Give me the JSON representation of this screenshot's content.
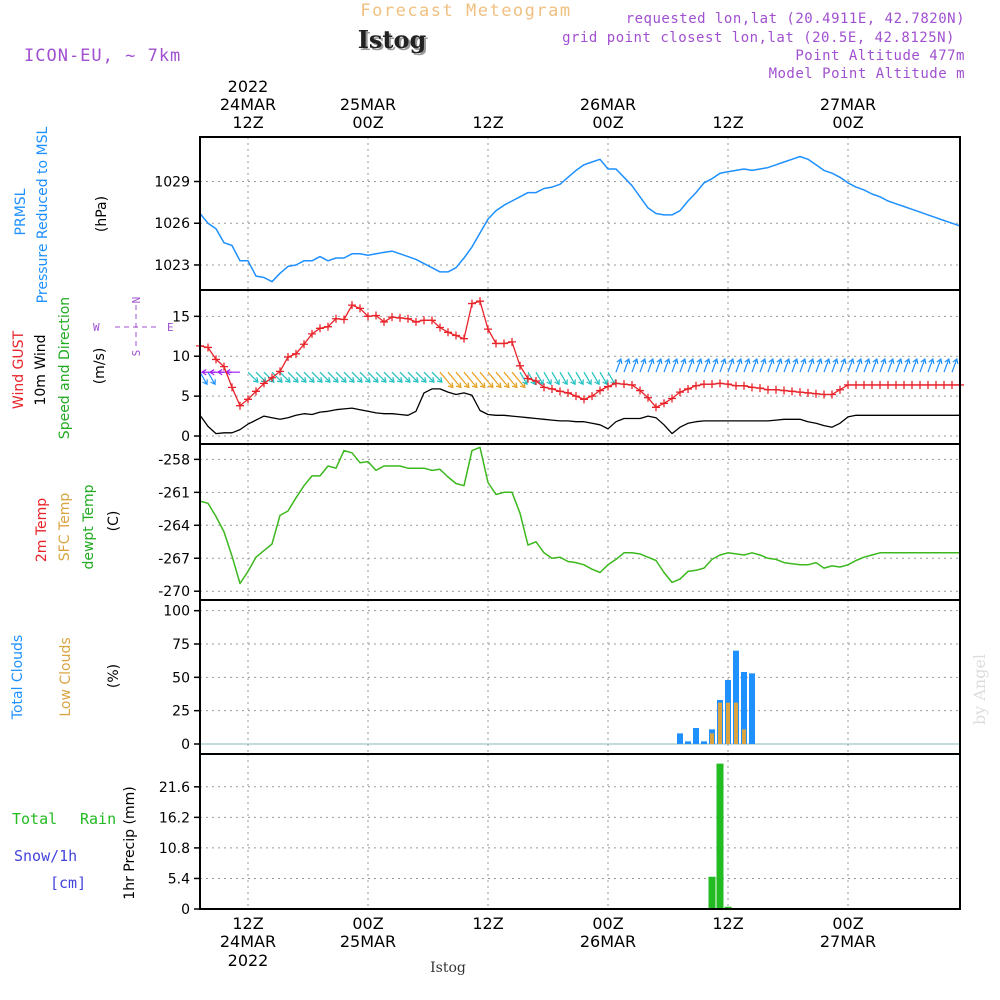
{
  "header": {
    "top_title": "Forecast Meteogram",
    "location": "Istog",
    "model": "ICON-EU, ~ 7km",
    "requested": "requested lon,lat (20.4911E, 42.7820N)",
    "grid_point": "grid point closest lon,lat (20.5E, 42.8125N)",
    "point_alt": "Point Altitude 477m",
    "model_alt": "Model Point Altitude m",
    "watermark": "by Angel",
    "bottom_location": "Istog"
  },
  "colors": {
    "pressure": "#1e90ff",
    "gust": "#e8232a",
    "wind": "#000000",
    "temp": "#3cb81e",
    "total_clouds": "#1e90ff",
    "low_clouds": "#d9a441",
    "rain": "#22bb22",
    "purple": "#a050d0",
    "orange_text": "#f0c080",
    "snow_text": "#4444dd"
  },
  "time_axis": {
    "start_hour": 0,
    "end_hour": 95,
    "top_ticks": [
      {
        "hour": 6,
        "l1": "2022",
        "l2": "24MAR",
        "l3": "12Z"
      },
      {
        "hour": 21,
        "l1": "",
        "l2": "25MAR",
        "l3": "00Z"
      },
      {
        "hour": 36,
        "l1": "",
        "l2": "",
        "l3": "12Z"
      },
      {
        "hour": 51,
        "l1": "",
        "l2": "26MAR",
        "l3": "00Z"
      },
      {
        "hour": 66,
        "l1": "",
        "l2": "",
        "l3": "12Z"
      },
      {
        "hour": 81,
        "l1": "",
        "l2": "27MAR",
        "l3": "00Z"
      }
    ],
    "bottom_ticks": [
      {
        "hour": 6,
        "l1": "12Z",
        "l2": "24MAR",
        "l3": "2022"
      },
      {
        "hour": 21,
        "l1": "00Z",
        "l2": "25MAR",
        "l3": ""
      },
      {
        "hour": 36,
        "l1": "12Z",
        "l2": "",
        "l3": ""
      },
      {
        "hour": 51,
        "l1": "00Z",
        "l2": "26MAR",
        "l3": ""
      },
      {
        "hour": 66,
        "l1": "12Z",
        "l2": "",
        "l3": ""
      },
      {
        "hour": 81,
        "l1": "00Z",
        "l2": "27MAR",
        "l3": ""
      }
    ]
  },
  "chart_data": [
    {
      "type": "line",
      "id": "pressure",
      "title": "PRMSL Pressure Reduced to MSL",
      "label_lines": [
        "PRMSL",
        "Pressure Reduced to MSL"
      ],
      "ylabel": "(hPa)",
      "ylim": [
        1021.2,
        1032.2
      ],
      "yticks": [
        1023,
        1026,
        1029
      ],
      "x": [
        0,
        1,
        2,
        3,
        4,
        5,
        6,
        7,
        8,
        9,
        10,
        11,
        12,
        13,
        14,
        15,
        16,
        17,
        18,
        19,
        20,
        21,
        22,
        23,
        24,
        25,
        26,
        27,
        28,
        29,
        30,
        31,
        32,
        33,
        34,
        35,
        36,
        37,
        38,
        39,
        40,
        41,
        42,
        43,
        44,
        45,
        46,
        47,
        48,
        49,
        50,
        51,
        52,
        53,
        54,
        55,
        56,
        57,
        58,
        59,
        60,
        61,
        62,
        63,
        64,
        65,
        66,
        67,
        68,
        69,
        70,
        71,
        72,
        73,
        74,
        75,
        76,
        77,
        78,
        79,
        80,
        81,
        82,
        83,
        84,
        85,
        86,
        87,
        88,
        89,
        90,
        91,
        92,
        93,
        94,
        95
      ],
      "values": [
        1026.7,
        1026.0,
        1025.6,
        1024.6,
        1024.4,
        1023.3,
        1023.3,
        1022.2,
        1022.1,
        1021.8,
        1022.4,
        1022.9,
        1023.0,
        1023.3,
        1023.3,
        1023.6,
        1023.3,
        1023.5,
        1023.5,
        1023.8,
        1023.8,
        1023.7,
        1023.8,
        1023.9,
        1024.0,
        1023.8,
        1023.6,
        1023.4,
        1023.1,
        1022.8,
        1022.5,
        1022.5,
        1022.8,
        1023.5,
        1024.3,
        1025.3,
        1026.3,
        1026.9,
        1027.3,
        1027.6,
        1027.9,
        1028.2,
        1028.2,
        1028.5,
        1028.6,
        1028.8,
        1029.3,
        1029.8,
        1030.2,
        1030.4,
        1030.6,
        1029.9,
        1029.9,
        1029.3,
        1028.7,
        1027.9,
        1027.1,
        1026.7,
        1026.6,
        1026.6,
        1026.9,
        1027.6,
        1028.2,
        1028.9,
        1029.2,
        1029.6,
        1029.7,
        1029.8,
        1029.9,
        1029.8,
        1029.9,
        1030.0,
        1030.2,
        1030.4,
        1030.6,
        1030.8,
        1030.6,
        1030.2,
        1029.8,
        1029.6,
        1029.3,
        1028.9,
        1028.6,
        1028.4,
        1028.1,
        1027.9,
        1027.6,
        1027.4,
        1027.2,
        1027.0,
        1026.8,
        1026.6,
        1026.4,
        1026.2,
        1026.0,
        1025.8
      ]
    },
    {
      "type": "line",
      "id": "wind",
      "title": "Wind GUST / 10m Wind Speed and Direction",
      "label_gust": "Wind GUST",
      "label_wind": "10m Wind",
      "label_dir": "Speed and Direction",
      "ylabel": "(m/s)",
      "compass": {
        "n": "N",
        "s": "S",
        "e": "E",
        "w": "W"
      },
      "ylim": [
        -1,
        18.3
      ],
      "yticks": [
        0,
        5,
        10,
        15
      ],
      "series": [
        {
          "name": "Wind GUST",
          "x": [
            0,
            1,
            2,
            3,
            4,
            5,
            6,
            7,
            8,
            9,
            10,
            11,
            12,
            13,
            14,
            15,
            16,
            17,
            18,
            19,
            20,
            21,
            22,
            23,
            24,
            25,
            26,
            27,
            28,
            29,
            30,
            31,
            32,
            33,
            34,
            35,
            36,
            37,
            38,
            39,
            40,
            41,
            42,
            43,
            44,
            45,
            46,
            47,
            48,
            49,
            50,
            51,
            52,
            53,
            54,
            55,
            56,
            57,
            58,
            59,
            60,
            61,
            62,
            63,
            64,
            65,
            66,
            67,
            68,
            69,
            70,
            71,
            72,
            73,
            74,
            75,
            76,
            77,
            78,
            79,
            80,
            81,
            82,
            83,
            84,
            85,
            86,
            87,
            88,
            89,
            90,
            91,
            92,
            93,
            94,
            95
          ],
          "values": [
            11.3,
            11.1,
            9.6,
            8.7,
            6.1,
            3.8,
            4.6,
            5.6,
            6.6,
            7.3,
            8.1,
            9.9,
            10.3,
            11.5,
            12.8,
            13.5,
            13.7,
            14.7,
            14.6,
            16.4,
            16.0,
            15.0,
            15.1,
            14.3,
            14.9,
            14.8,
            14.7,
            14.3,
            14.5,
            14.5,
            13.6,
            13.0,
            12.6,
            12.2,
            16.6,
            16.9,
            13.4,
            11.6,
            11.6,
            11.8,
            8.8,
            7.2,
            6.9,
            6.1,
            5.9,
            5.6,
            5.4,
            5.0,
            4.6,
            5.0,
            5.7,
            6.2,
            6.6,
            6.5,
            6.4,
            5.7,
            4.8,
            3.6,
            4.1,
            4.7,
            5.5,
            5.9,
            6.3,
            6.5,
            6.5,
            6.6,
            6.5,
            6.3,
            6.3,
            6.1,
            6.0,
            5.8,
            5.8,
            5.7,
            5.6,
            5.5,
            5.4,
            5.3,
            5.2,
            5.2,
            5.8,
            6.4,
            6.4,
            6.4,
            6.4,
            6.4,
            6.4,
            6.4,
            6.4,
            6.4,
            6.4,
            6.4,
            6.4,
            6.4,
            6.4,
            6.4
          ]
        },
        {
          "name": "10m Wind",
          "x": [
            0,
            1,
            2,
            3,
            4,
            5,
            6,
            7,
            8,
            9,
            10,
            11,
            12,
            13,
            14,
            15,
            16,
            17,
            18,
            19,
            20,
            21,
            22,
            23,
            24,
            25,
            26,
            27,
            28,
            29,
            30,
            31,
            32,
            33,
            34,
            35,
            36,
            37,
            38,
            39,
            40,
            41,
            42,
            43,
            44,
            45,
            46,
            47,
            48,
            49,
            50,
            51,
            52,
            53,
            54,
            55,
            56,
            57,
            58,
            59,
            60,
            61,
            62,
            63,
            64,
            65,
            66,
            67,
            68,
            69,
            70,
            71,
            72,
            73,
            74,
            75,
            76,
            77,
            78,
            79,
            80,
            81,
            82,
            83,
            84,
            85,
            86,
            87,
            88,
            89,
            90,
            91,
            92,
            93,
            94,
            95
          ],
          "values": [
            2.6,
            1.2,
            0.3,
            0.4,
            0.4,
            0.8,
            1.5,
            2.0,
            2.5,
            2.3,
            2.1,
            2.3,
            2.6,
            2.8,
            2.7,
            3.0,
            3.1,
            3.3,
            3.4,
            3.5,
            3.3,
            3.1,
            2.9,
            2.8,
            2.8,
            2.7,
            2.6,
            3.1,
            5.4,
            5.9,
            5.9,
            5.5,
            5.2,
            5.4,
            5.1,
            3.2,
            2.7,
            2.6,
            2.6,
            2.5,
            2.4,
            2.3,
            2.2,
            2.1,
            2.0,
            1.9,
            1.9,
            1.8,
            1.8,
            1.6,
            1.4,
            0.9,
            1.8,
            2.2,
            2.2,
            2.2,
            2.5,
            2.3,
            1.4,
            0.3,
            1.1,
            1.6,
            1.8,
            1.9,
            1.9,
            1.9,
            1.9,
            1.9,
            1.9,
            1.9,
            1.9,
            1.9,
            2.0,
            2.1,
            2.1,
            2.1,
            1.8,
            1.6,
            1.3,
            1.1,
            1.6,
            2.4,
            2.6,
            2.6,
            2.6,
            2.6,
            2.6,
            2.6,
            2.6,
            2.6,
            2.6,
            2.6,
            2.6,
            2.6,
            2.6,
            2.6
          ]
        }
      ],
      "direction_arrows": {
        "from_deg_segments": [
          {
            "from_hour": 0,
            "to_hour": 2,
            "from_deg": 330,
            "color": "#1e90ff"
          },
          {
            "from_hour": 2,
            "to_hour": 6,
            "from_deg": 90,
            "color": "#a020f0"
          },
          {
            "from_hour": 6,
            "to_hour": 30,
            "from_deg": 315,
            "color": "#20c0c0"
          },
          {
            "from_hour": 30,
            "to_hour": 40,
            "from_deg": 320,
            "color": "#e8a020"
          },
          {
            "from_hour": 40,
            "to_hour": 52,
            "from_deg": 330,
            "color": "#20c0c0"
          },
          {
            "from_hour": 52,
            "to_hour": 95,
            "from_deg": 200,
            "color": "#1e90ff"
          }
        ],
        "baseline_value": 8.0
      }
    },
    {
      "type": "line",
      "id": "temperature",
      "title": "2m Temp / SFC Temp / dewpt Temp",
      "label_t2m": "2m Temp",
      "label_sfc": "SFC Temp",
      "label_dew": "dewpt Temp",
      "ylabel": "(C)",
      "ylim": [
        -270.8,
        -256.6
      ],
      "yticks": [
        -270,
        -267,
        -264,
        -261,
        -258
      ],
      "x": [
        0,
        1,
        2,
        3,
        4,
        5,
        6,
        7,
        8,
        9,
        10,
        11,
        12,
        13,
        14,
        15,
        16,
        17,
        18,
        19,
        20,
        21,
        22,
        23,
        24,
        25,
        26,
        27,
        28,
        29,
        30,
        31,
        32,
        33,
        34,
        35,
        36,
        37,
        38,
        39,
        40,
        41,
        42,
        43,
        44,
        45,
        46,
        47,
        48,
        49,
        50,
        51,
        52,
        53,
        54,
        55,
        56,
        57,
        58,
        59,
        60,
        61,
        62,
        63,
        64,
        65,
        66,
        67,
        68,
        69,
        70,
        71,
        72,
        73,
        74,
        75,
        76,
        77,
        78,
        79,
        80,
        81,
        82,
        83,
        84,
        85,
        86,
        87,
        88,
        89,
        90,
        91,
        92,
        93,
        94,
        95
      ],
      "values": [
        -261.8,
        -262.0,
        -263.2,
        -264.6,
        -266.8,
        -269.3,
        -268.2,
        -266.9,
        -266.3,
        -265.7,
        -263.1,
        -262.7,
        -261.5,
        -260.4,
        -259.5,
        -259.5,
        -258.6,
        -258.8,
        -257.2,
        -257.4,
        -258.3,
        -258.2,
        -259.0,
        -258.6,
        -258.6,
        -258.6,
        -258.8,
        -258.8,
        -258.8,
        -259.0,
        -258.9,
        -259.6,
        -260.2,
        -260.4,
        -257.2,
        -256.9,
        -260.1,
        -261.2,
        -261.0,
        -261.0,
        -262.9,
        -265.8,
        -265.5,
        -266.5,
        -267.0,
        -266.9,
        -267.3,
        -267.4,
        -267.6,
        -268.0,
        -268.3,
        -267.6,
        -267.1,
        -266.5,
        -266.5,
        -266.6,
        -266.9,
        -267.2,
        -268.3,
        -269.2,
        -268.9,
        -268.2,
        -268.1,
        -267.9,
        -267.1,
        -266.7,
        -266.5,
        -266.6,
        -266.7,
        -266.5,
        -266.7,
        -267.0,
        -267.1,
        -267.4,
        -267.5,
        -267.6,
        -267.6,
        -267.4,
        -267.9,
        -267.7,
        -267.8,
        -267.6,
        -267.2,
        -266.9,
        -266.7,
        -266.5,
        -266.5,
        -266.5,
        -266.5,
        -266.5,
        -266.5,
        -266.5,
        -266.5,
        -266.5,
        -266.5,
        -266.5
      ]
    },
    {
      "type": "bar",
      "id": "clouds",
      "title": "Total Clouds / Low Clouds",
      "label_total": "Total Clouds",
      "label_low": "Low Clouds",
      "ylabel": "(%)",
      "ylim": [
        -7.5,
        108
      ],
      "yticks": [
        0,
        25,
        50,
        75,
        100
      ],
      "series": [
        {
          "name": "Total Clouds",
          "x": [
            60,
            61,
            62,
            63,
            64,
            65,
            66,
            67,
            68,
            69,
            70
          ],
          "values": [
            8,
            2,
            12,
            2,
            11,
            33,
            48,
            70,
            54,
            53,
            0
          ]
        },
        {
          "name": "Low Clouds",
          "x": [
            60,
            61,
            62,
            63,
            64,
            65,
            66,
            67,
            68,
            69,
            70
          ],
          "values": [
            0,
            0,
            0,
            0,
            8,
            31,
            31,
            31,
            11,
            0,
            0
          ]
        }
      ]
    },
    {
      "type": "bar",
      "id": "precip",
      "title": "1hr Precip (mm)",
      "label_rain_total": "Total",
      "label_rain": "Rain",
      "label_snow": "Snow/1h",
      "label_snow_unit": "[cm]",
      "ylabel": "1hr Precip (mm)",
      "ylim": [
        0,
        27.4
      ],
      "yticks": [
        0,
        5.4,
        10.8,
        16.2,
        21.6
      ],
      "x": [
        64,
        65,
        66
      ],
      "values": [
        5.7,
        25.7,
        0.4
      ]
    }
  ]
}
